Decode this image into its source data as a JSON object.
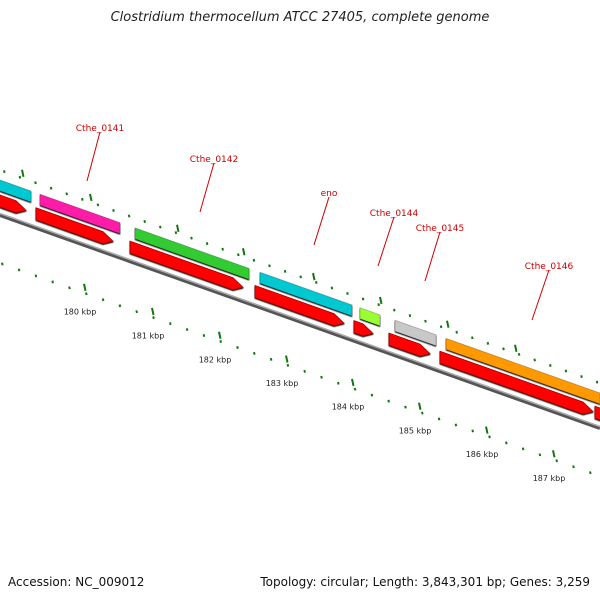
{
  "header": {
    "title": "Clostridium thermocellum ATCC 27405, complete genome"
  },
  "footer": {
    "accession": "Accession: NC_009012",
    "summary": "Topology: circular; Length: 3,843,301 bp; Genes: 3,259"
  },
  "colors": {
    "backbone": "#777777",
    "cds": "#ff0000",
    "label": "#cc0000",
    "tick": "#117711"
  },
  "genes": [
    {
      "label": "",
      "color": "#00c8d0"
    },
    {
      "label": "Cthe_0141",
      "color": "#ff1aa8"
    },
    {
      "label": "Cthe_0142",
      "color": "#33cc33"
    },
    {
      "label": "eno",
      "color": "#00c8d0"
    },
    {
      "label": "Cthe_0144",
      "color": "#99ff33"
    },
    {
      "label": "Cthe_0145",
      "color": "#c8c8c8"
    },
    {
      "label": "Cthe_0146",
      "color": "#ff9900"
    }
  ],
  "scale": {
    "labels": [
      "180 kbp",
      "181 kbp",
      "182 kbp",
      "183 kbp",
      "184 kbp",
      "185 kbp",
      "186 kbp",
      "187 kbp"
    ]
  }
}
